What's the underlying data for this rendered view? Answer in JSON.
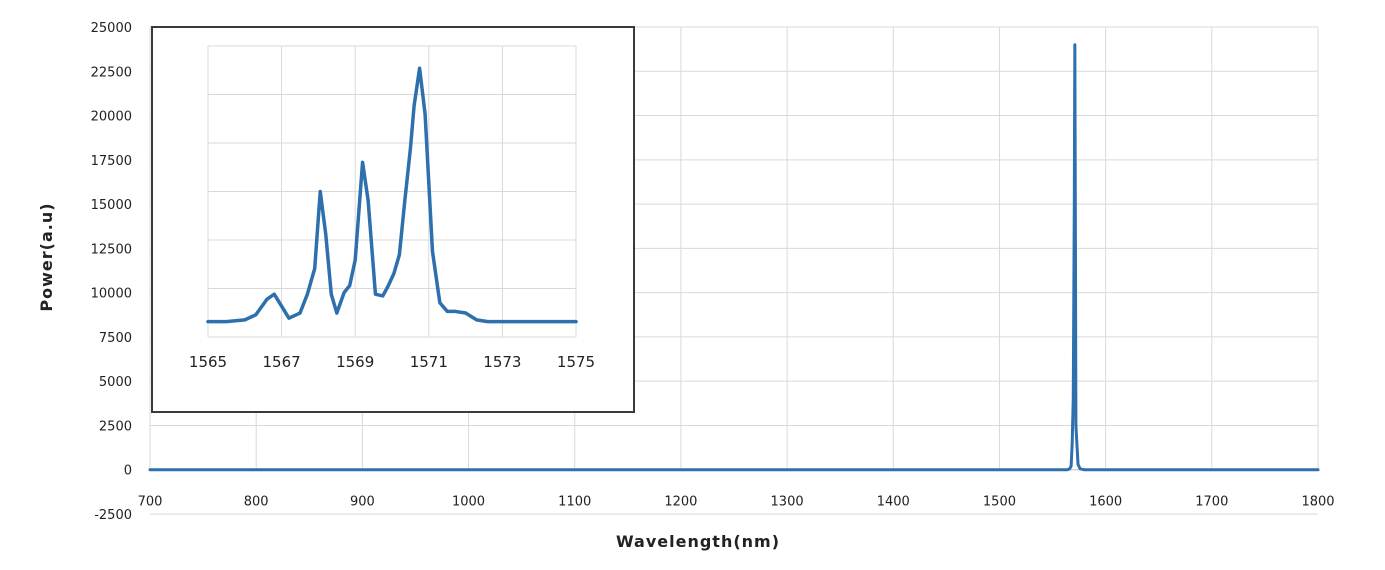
{
  "chart_data": [
    {
      "type": "line",
      "xlabel": "Wavelength(nm)",
      "ylabel": "Power(a.u)",
      "xlim": [
        700,
        1800
      ],
      "ylim": [
        -2500,
        25000
      ],
      "x_ticks": [
        "700",
        "800",
        "900",
        "1000",
        "1100",
        "1200",
        "1300",
        "1400",
        "1500",
        "1600",
        "1700",
        "1800"
      ],
      "y_ticks": [
        "-2500",
        "0",
        "2500",
        "5000",
        "7500",
        "10000",
        "12500",
        "15000",
        "17500",
        "20000",
        "22500",
        "25000"
      ],
      "grid": true,
      "legend": "none",
      "color": "#2e6fad",
      "series": [
        {
          "x": [
            700,
            1500,
            1564,
            1566,
            1567.5,
            1568.5,
            1569.5,
            1570.5,
            1571,
            1571.5,
            1572,
            1574,
            1576,
            1580,
            1800
          ],
          "values": [
            0,
            0,
            0,
            50,
            200,
            1500,
            4000,
            15000,
            24000,
            14000,
            2500,
            300,
            50,
            0,
            0
          ]
        }
      ]
    },
    {
      "type": "line",
      "xlabel": "",
      "ylabel": "",
      "xlim": [
        1565,
        1575
      ],
      "ylim": [
        7000,
        24000
      ],
      "x_ticks": [
        "1565",
        "1567",
        "1569",
        "1571",
        "1573",
        "1575"
      ],
      "grid": true,
      "legend": "none",
      "color": "#2e6fad",
      "series": [
        {
          "x": [
            1565,
            1565.5,
            1566,
            1566.3,
            1566.6,
            1566.8,
            1567,
            1567.2,
            1567.5,
            1567.7,
            1567.9,
            1568.05,
            1568.2,
            1568.35,
            1568.5,
            1568.7,
            1568.85,
            1569,
            1569.2,
            1569.35,
            1569.55,
            1569.75,
            1569.9,
            1570.05,
            1570.2,
            1570.35,
            1570.5,
            1570.6,
            1570.75,
            1570.9,
            1571.1,
            1571.3,
            1571.5,
            1571.7,
            1572,
            1572.3,
            1572.6,
            1573,
            1574,
            1575
          ],
          "values": [
            7900,
            7900,
            8000,
            8300,
            9200,
            9500,
            8800,
            8100,
            8400,
            9500,
            11000,
            15500,
            13000,
            9500,
            8400,
            9600,
            10000,
            11500,
            17200,
            15000,
            9500,
            9400,
            10000,
            10700,
            11800,
            15000,
            18000,
            20500,
            22700,
            20000,
            12000,
            9000,
            8500,
            8500,
            8400,
            8000,
            7900,
            7900,
            7900,
            7900
          ]
        }
      ]
    }
  ]
}
